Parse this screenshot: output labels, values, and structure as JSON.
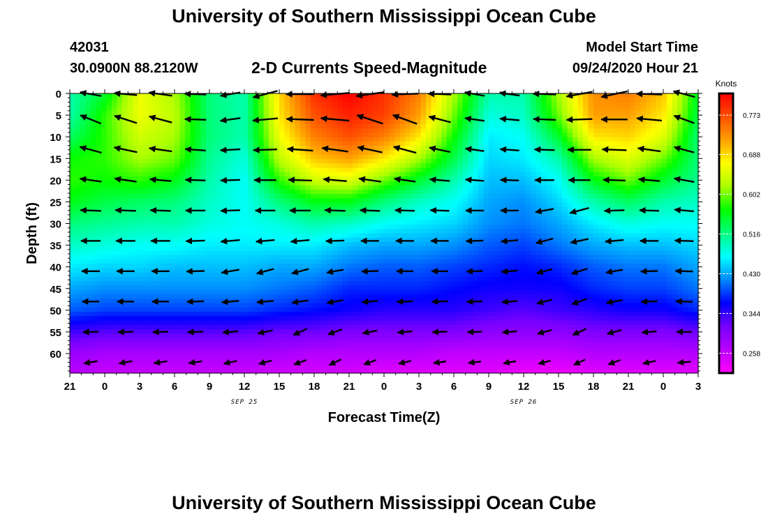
{
  "header": {
    "title": "University of Southern Mississippi Ocean Cube",
    "station_id": "42031",
    "coords": "30.0900N 88.2120W",
    "model_start_label": "Model Start Time",
    "model_start_value": "09/24/2020 Hour 21"
  },
  "footer": {
    "title": "University of Southern Mississippi Ocean Cube"
  },
  "chart_data": {
    "type": "heatmap",
    "title": "2-D Currents Speed-Magnitude",
    "xlabel": "Forecast Time(Z)",
    "ylabel": "Depth (ft)",
    "x_ticks": [
      "21",
      "0",
      "3",
      "6",
      "9",
      "12",
      "15",
      "18",
      "21",
      "0",
      "3",
      "6",
      "9",
      "12",
      "15",
      "18",
      "21",
      "0",
      "3"
    ],
    "date_labels": [
      {
        "text": "SEP 25",
        "at_hour": 15
      },
      {
        "text": "SEP 26",
        "at_hour": 39
      }
    ],
    "x_range_hours": [
      0,
      54
    ],
    "y_ticks": [
      0,
      5,
      10,
      15,
      20,
      25,
      30,
      35,
      40,
      45,
      50,
      55,
      60
    ],
    "y_range": [
      0,
      64.5
    ],
    "y_reversed": true,
    "colorbar": {
      "unit": "Knots",
      "ticks": [
        0.258,
        0.344,
        0.43,
        0.516,
        0.602,
        0.688,
        0.773
      ],
      "range": [
        0.215,
        0.82
      ],
      "colors": [
        "#ff00ff",
        "#bb00ff",
        "#7700ff",
        "#0000ff",
        "#0088ff",
        "#00ffff",
        "#00ff80",
        "#00ff00",
        "#aaff00",
        "#ffff00",
        "#ffa000",
        "#ff5000",
        "#ff0000"
      ]
    },
    "speed_grid": {
      "x_hours": [
        0,
        3,
        6,
        9,
        12,
        15,
        18,
        21,
        24,
        27,
        30,
        33,
        36,
        39,
        42,
        45,
        48,
        51,
        54
      ],
      "depths": [
        0,
        5,
        10,
        15,
        20,
        25,
        30,
        35,
        40,
        45,
        50,
        55,
        60,
        64
      ],
      "values": [
        [
          0.5,
          0.55,
          0.66,
          0.62,
          0.52,
          0.5,
          0.69,
          0.79,
          0.82,
          0.79,
          0.74,
          0.62,
          0.5,
          0.5,
          0.62,
          0.73,
          0.74,
          0.7,
          0.55
        ],
        [
          0.5,
          0.58,
          0.66,
          0.63,
          0.52,
          0.5,
          0.68,
          0.77,
          0.8,
          0.78,
          0.72,
          0.6,
          0.48,
          0.49,
          0.6,
          0.72,
          0.72,
          0.68,
          0.54
        ],
        [
          0.53,
          0.58,
          0.64,
          0.62,
          0.52,
          0.5,
          0.66,
          0.74,
          0.77,
          0.74,
          0.68,
          0.57,
          0.46,
          0.47,
          0.55,
          0.68,
          0.69,
          0.65,
          0.52
        ],
        [
          0.57,
          0.58,
          0.62,
          0.6,
          0.51,
          0.48,
          0.63,
          0.7,
          0.72,
          0.68,
          0.62,
          0.54,
          0.45,
          0.46,
          0.5,
          0.62,
          0.65,
          0.6,
          0.52
        ],
        [
          0.58,
          0.57,
          0.58,
          0.56,
          0.5,
          0.47,
          0.58,
          0.64,
          0.65,
          0.6,
          0.55,
          0.5,
          0.44,
          0.44,
          0.47,
          0.56,
          0.6,
          0.55,
          0.51
        ],
        [
          0.56,
          0.54,
          0.53,
          0.52,
          0.49,
          0.47,
          0.52,
          0.56,
          0.56,
          0.52,
          0.49,
          0.47,
          0.43,
          0.42,
          0.45,
          0.5,
          0.53,
          0.5,
          0.49
        ],
        [
          0.52,
          0.51,
          0.5,
          0.5,
          0.48,
          0.47,
          0.48,
          0.5,
          0.49,
          0.47,
          0.46,
          0.45,
          0.42,
          0.41,
          0.43,
          0.46,
          0.48,
          0.47,
          0.47
        ],
        [
          0.49,
          0.48,
          0.47,
          0.47,
          0.46,
          0.46,
          0.46,
          0.46,
          0.44,
          0.43,
          0.43,
          0.42,
          0.4,
          0.39,
          0.41,
          0.43,
          0.44,
          0.44,
          0.45
        ],
        [
          0.46,
          0.45,
          0.45,
          0.44,
          0.44,
          0.44,
          0.43,
          0.43,
          0.41,
          0.4,
          0.4,
          0.39,
          0.38,
          0.37,
          0.38,
          0.4,
          0.41,
          0.41,
          0.43
        ],
        [
          0.43,
          0.42,
          0.42,
          0.42,
          0.42,
          0.42,
          0.41,
          0.4,
          0.38,
          0.38,
          0.38,
          0.37,
          0.36,
          0.36,
          0.36,
          0.38,
          0.39,
          0.39,
          0.41
        ],
        [
          0.4,
          0.39,
          0.39,
          0.39,
          0.39,
          0.39,
          0.38,
          0.37,
          0.36,
          0.35,
          0.35,
          0.35,
          0.34,
          0.33,
          0.34,
          0.35,
          0.36,
          0.36,
          0.38
        ],
        [
          0.34,
          0.33,
          0.33,
          0.33,
          0.33,
          0.33,
          0.32,
          0.32,
          0.31,
          0.31,
          0.31,
          0.31,
          0.3,
          0.3,
          0.3,
          0.31,
          0.31,
          0.31,
          0.32
        ],
        [
          0.29,
          0.28,
          0.28,
          0.28,
          0.28,
          0.28,
          0.28,
          0.27,
          0.27,
          0.27,
          0.27,
          0.26,
          0.26,
          0.26,
          0.26,
          0.27,
          0.27,
          0.27,
          0.27
        ],
        [
          0.27,
          0.26,
          0.26,
          0.26,
          0.26,
          0.26,
          0.25,
          0.25,
          0.25,
          0.24,
          0.24,
          0.24,
          0.24,
          0.23,
          0.23,
          0.24,
          0.24,
          0.24,
          0.24
        ]
      ]
    },
    "vectors": {
      "x_hours": [
        1.8,
        4.8,
        7.8,
        10.8,
        13.8,
        16.8,
        19.8,
        22.8,
        25.8,
        28.8,
        31.8,
        34.8,
        37.8,
        40.8,
        43.8,
        46.8,
        49.8,
        52.8
      ],
      "depths": [
        0,
        6,
        13,
        20,
        27,
        34,
        41,
        48,
        55,
        62
      ],
      "angles_deg": [
        [
          170,
          175,
          172,
          178,
          190,
          195,
          180,
          185,
          188,
          182,
          178,
          170,
          172,
          178,
          190,
          192,
          178,
          165
        ],
        [
          158,
          162,
          165,
          178,
          188,
          185,
          178,
          175,
          162,
          160,
          165,
          172,
          175,
          178,
          182,
          180,
          175,
          160
        ],
        [
          165,
          168,
          172,
          176,
          183,
          182,
          176,
          172,
          168,
          165,
          168,
          172,
          176,
          178,
          180,
          178,
          172,
          165
        ],
        [
          172,
          172,
          175,
          178,
          182,
          180,
          178,
          175,
          172,
          172,
          175,
          176,
          178,
          180,
          180,
          178,
          175,
          170
        ],
        [
          178,
          178,
          178,
          180,
          182,
          180,
          180,
          178,
          178,
          178,
          178,
          180,
          180,
          190,
          195,
          182,
          178,
          175
        ],
        [
          180,
          180,
          180,
          182,
          185,
          185,
          185,
          182,
          180,
          180,
          180,
          182,
          185,
          195,
          192,
          185,
          180,
          178
        ],
        [
          180,
          180,
          180,
          182,
          190,
          195,
          195,
          190,
          182,
          180,
          180,
          182,
          185,
          195,
          198,
          190,
          182,
          178
        ],
        [
          180,
          180,
          180,
          182,
          185,
          185,
          188,
          190,
          185,
          182,
          182,
          182,
          185,
          195,
          200,
          190,
          182,
          178
        ],
        [
          182,
          182,
          182,
          183,
          185,
          192,
          205,
          200,
          190,
          185,
          183,
          182,
          185,
          195,
          205,
          195,
          185,
          180
        ],
        [
          190,
          190,
          188,
          188,
          192,
          195,
          200,
          205,
          200,
          192,
          188,
          186,
          190,
          195,
          205,
          200,
          192,
          185
        ]
      ],
      "speeds": [
        [
          0.55,
          0.6,
          0.62,
          0.55,
          0.5,
          0.68,
          0.78,
          0.82,
          0.78,
          0.72,
          0.6,
          0.5,
          0.5,
          0.6,
          0.72,
          0.74,
          0.7,
          0.58
        ],
        [
          0.58,
          0.62,
          0.62,
          0.54,
          0.5,
          0.68,
          0.76,
          0.8,
          0.76,
          0.7,
          0.58,
          0.48,
          0.48,
          0.58,
          0.7,
          0.72,
          0.68,
          0.55
        ],
        [
          0.58,
          0.62,
          0.6,
          0.52,
          0.49,
          0.63,
          0.7,
          0.72,
          0.68,
          0.62,
          0.54,
          0.45,
          0.46,
          0.5,
          0.62,
          0.65,
          0.6,
          0.52
        ],
        [
          0.56,
          0.57,
          0.55,
          0.5,
          0.47,
          0.57,
          0.62,
          0.62,
          0.58,
          0.54,
          0.5,
          0.44,
          0.44,
          0.47,
          0.56,
          0.58,
          0.55,
          0.51
        ],
        [
          0.52,
          0.52,
          0.51,
          0.49,
          0.47,
          0.5,
          0.53,
          0.52,
          0.49,
          0.48,
          0.46,
          0.43,
          0.42,
          0.44,
          0.48,
          0.5,
          0.48,
          0.48
        ],
        [
          0.48,
          0.47,
          0.47,
          0.46,
          0.46,
          0.45,
          0.45,
          0.44,
          0.43,
          0.43,
          0.42,
          0.4,
          0.39,
          0.41,
          0.43,
          0.44,
          0.44,
          0.45
        ],
        [
          0.43,
          0.42,
          0.42,
          0.42,
          0.42,
          0.41,
          0.4,
          0.38,
          0.38,
          0.38,
          0.37,
          0.36,
          0.36,
          0.36,
          0.38,
          0.39,
          0.39,
          0.41
        ],
        [
          0.39,
          0.39,
          0.39,
          0.39,
          0.39,
          0.38,
          0.37,
          0.36,
          0.35,
          0.35,
          0.35,
          0.34,
          0.33,
          0.34,
          0.35,
          0.36,
          0.36,
          0.38
        ],
        [
          0.33,
          0.33,
          0.33,
          0.33,
          0.33,
          0.32,
          0.32,
          0.31,
          0.31,
          0.31,
          0.31,
          0.3,
          0.3,
          0.3,
          0.31,
          0.31,
          0.31,
          0.32
        ],
        [
          0.27,
          0.26,
          0.26,
          0.26,
          0.26,
          0.26,
          0.25,
          0.25,
          0.25,
          0.24,
          0.24,
          0.24,
          0.24,
          0.23,
          0.23,
          0.24,
          0.24,
          0.25
        ]
      ]
    }
  }
}
